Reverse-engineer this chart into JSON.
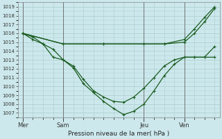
{
  "background_color": "#cce8ec",
  "grid_color": "#aacccc",
  "line_color": "#1a5c20",
  "title": "Pression niveau de la mer( hPa )",
  "ylim": [
    1006.5,
    1019.5
  ],
  "yticks": [
    1007,
    1008,
    1009,
    1010,
    1011,
    1012,
    1013,
    1014,
    1015,
    1016,
    1017,
    1018,
    1019
  ],
  "day_labels": [
    "Mer",
    "Sam",
    "Jeu",
    "Ven"
  ],
  "day_positions": [
    0,
    4,
    12,
    16
  ],
  "xlim": [
    -0.5,
    19.5
  ],
  "xminor_ticks": [
    0,
    1,
    2,
    3,
    4,
    5,
    6,
    7,
    8,
    9,
    10,
    11,
    12,
    13,
    14,
    15,
    16,
    17,
    18,
    19
  ],
  "line1_x": [
    0,
    1,
    2,
    3,
    4,
    5,
    6,
    7,
    8,
    9,
    10,
    11,
    12,
    13,
    14,
    15,
    16,
    17,
    18,
    19
  ],
  "line1_y": [
    1016.0,
    1015.6,
    1014.8,
    1013.3,
    1013.0,
    1012.1,
    1010.3,
    1009.3,
    1008.3,
    1007.5,
    1006.8,
    1007.2,
    1008.0,
    1009.5,
    1011.2,
    1012.5,
    1013.3,
    1013.3,
    1013.3,
    1013.3
  ],
  "line2_x": [
    0,
    1,
    2,
    3,
    4,
    5,
    6,
    7,
    8,
    9,
    10,
    11,
    12,
    13,
    14,
    15,
    16,
    17,
    18,
    19
  ],
  "line2_y": [
    1016.0,
    1015.3,
    1014.8,
    1014.2,
    1013.0,
    1012.3,
    1010.8,
    1009.5,
    1008.8,
    1008.3,
    1008.2,
    1008.8,
    1009.8,
    1011.0,
    1012.3,
    1013.0,
    1013.3,
    1013.3,
    1013.3,
    1014.5
  ],
  "line3_x": [
    0,
    4,
    8,
    12,
    14,
    16,
    17,
    18,
    19
  ],
  "line3_y": [
    1016.0,
    1014.8,
    1014.8,
    1014.8,
    1014.8,
    1015.3,
    1016.5,
    1017.8,
    1019.0
  ],
  "line4_x": [
    0,
    4,
    8,
    12,
    14,
    16,
    17,
    18,
    19
  ],
  "line4_y": [
    1016.0,
    1014.8,
    1014.8,
    1014.8,
    1014.8,
    1015.0,
    1016.0,
    1017.3,
    1018.8
  ],
  "line1_marker": "+",
  "line2_marker": "+",
  "line3_marker": "none",
  "line4_marker": "none"
}
